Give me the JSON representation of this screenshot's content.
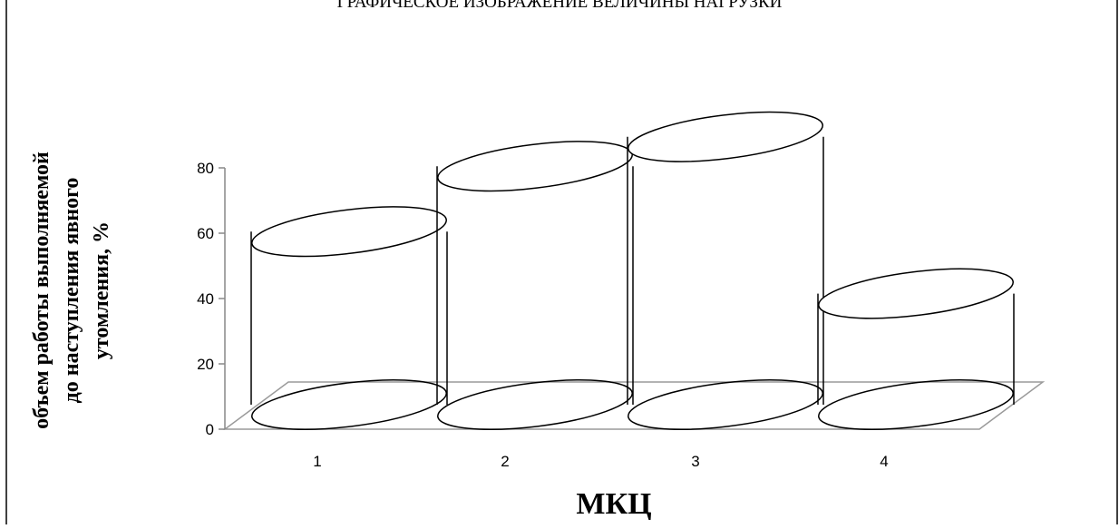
{
  "chart_data": {
    "type": "bar",
    "title": "ГРАФИЧЕСКОЕ ИЗОБРАЖЕНИЕ ВЕЛИЧИНЫ НАГРУЗКИ",
    "categories": [
      "1",
      "2",
      "3",
      "4"
    ],
    "values": [
      53,
      73,
      82,
      34
    ],
    "xlabel": "МКЦ",
    "ylabel": [
      "объем работы выполняемой",
      "до наступления явного",
      "утомления, %"
    ],
    "ylim": [
      0,
      80
    ],
    "yticks": [
      0,
      20,
      40,
      60,
      80
    ],
    "grid": false,
    "legend": "none",
    "style": "3d-cylinder-outline"
  }
}
